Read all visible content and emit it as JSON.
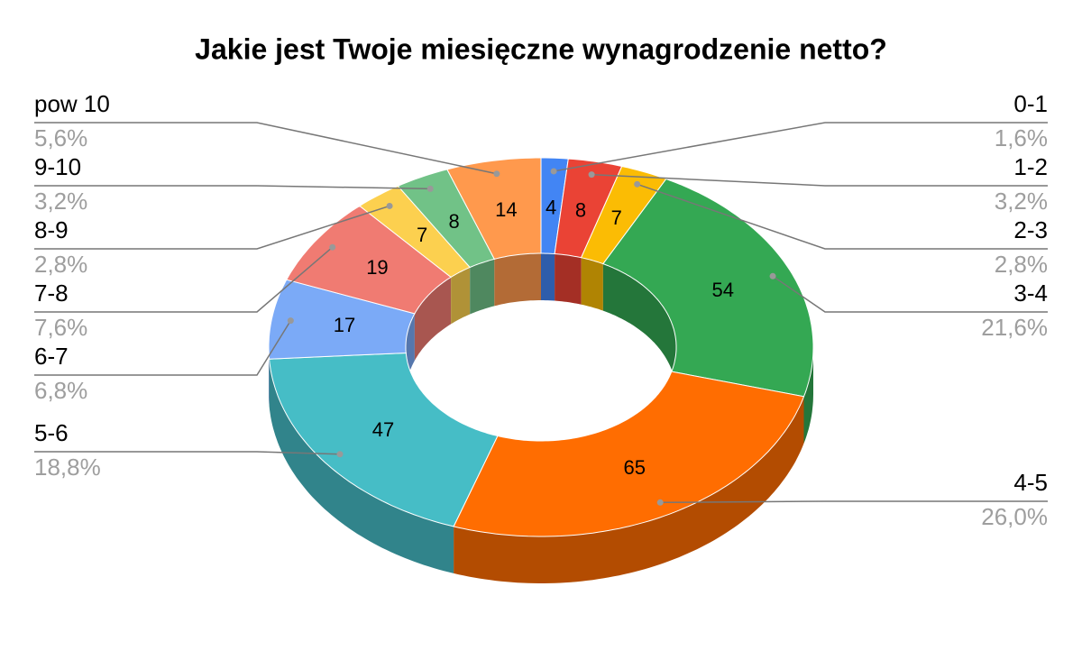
{
  "chart_data": {
    "type": "pie",
    "style": "3d-donut",
    "title": "Jakie jest Twoje miesięczne wynagrodzenie netto?",
    "categories": [
      "0-1",
      "1-2",
      "2-3",
      "3-4",
      "4-5",
      "5-6",
      "6-7",
      "7-8",
      "8-9",
      "9-10",
      "pow 10"
    ],
    "values": [
      4,
      8,
      7,
      54,
      65,
      47,
      17,
      19,
      7,
      8,
      14
    ],
    "percent_labels": [
      "1,6%",
      "3,2%",
      "2,8%",
      "21,6%",
      "26,0%",
      "18,8%",
      "6,8%",
      "7,6%",
      "2,8%",
      "3,2%",
      "5,6%"
    ],
    "colors": [
      "#4285f4",
      "#ea4335",
      "#fbbc04",
      "#34a853",
      "#ff6d01",
      "#46bdc6",
      "#7baaf7",
      "#f07b72",
      "#fcd04f",
      "#71c287",
      "#ff994d"
    ]
  }
}
